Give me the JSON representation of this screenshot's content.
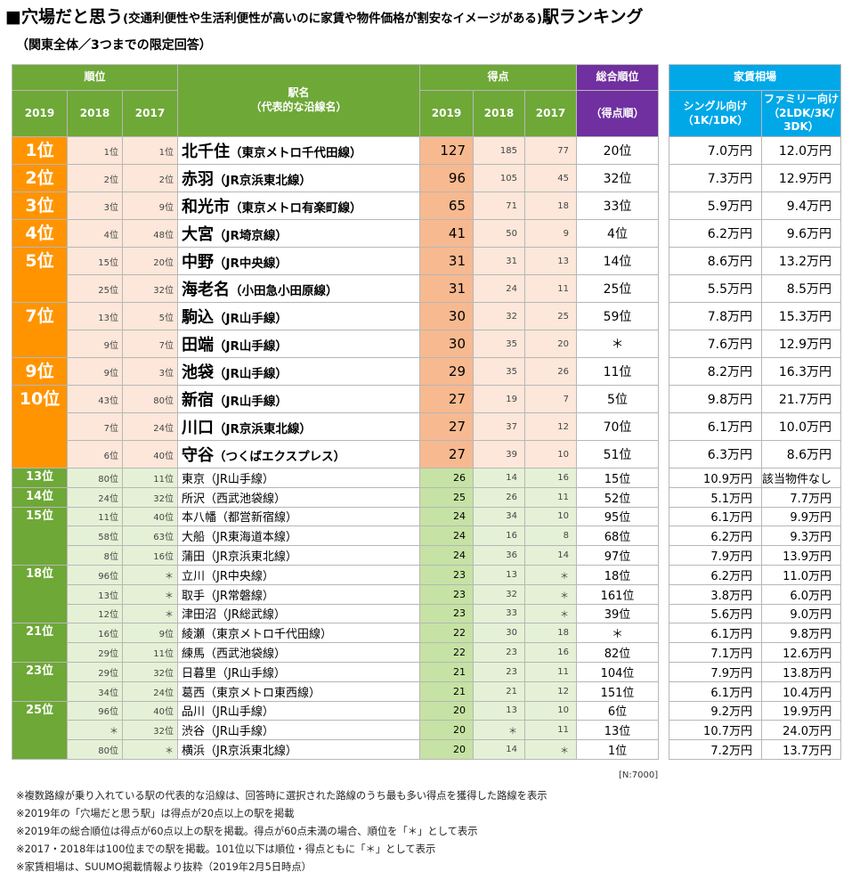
{
  "title": {
    "main_start": "■穴場だと思う",
    "paren": "(交通利便性や生活利便性が高いのに家賃や物件価格が割安なイメージがある)",
    "main_end": "駅ランキング"
  },
  "subtitle": "（関東全体／3つまでの限定回答）",
  "header": {
    "rank": "順位",
    "station_name": "駅名",
    "station_sub": "（代表的な沿線名）",
    "score": "得点",
    "overall": "総合順位",
    "overall_sub": "（得点順）",
    "rent": "家賃相場",
    "single": "シングル向け",
    "single_sub": "（1K/1DK）",
    "family": "ファミリー向け",
    "family_sub": "（2LDK/3K/",
    "family_sub2": "3DK）",
    "y2019": "2019",
    "y2018": "2018",
    "y2017": "2017"
  },
  "rows": [
    {
      "rank": "1位",
      "r2018": "1位",
      "r2017": "1位",
      "station": "北千住",
      "line": "（東京メトロ千代田線）",
      "s2019": "127",
      "s2018": "185",
      "s2017": "77",
      "overall": "20位",
      "single": "7.0万円",
      "family": "12.0万円"
    },
    {
      "rank": "2位",
      "r2018": "2位",
      "r2017": "2位",
      "station": "赤羽",
      "line": "（JR京浜東北線）",
      "s2019": "96",
      "s2018": "105",
      "s2017": "45",
      "overall": "32位",
      "single": "7.3万円",
      "family": "12.9万円"
    },
    {
      "rank": "3位",
      "r2018": "3位",
      "r2017": "9位",
      "station": "和光市",
      "line": "（東京メトロ有楽町線）",
      "s2019": "65",
      "s2018": "71",
      "s2017": "18",
      "overall": "33位",
      "single": "5.9万円",
      "family": "9.4万円"
    },
    {
      "rank": "4位",
      "r2018": "4位",
      "r2017": "48位",
      "station": "大宮",
      "line": "（JR埼京線）",
      "s2019": "41",
      "s2018": "50",
      "s2017": "9",
      "overall": "4位",
      "single": "6.2万円",
      "family": "9.6万円"
    },
    {
      "rank": "5位",
      "r2018": "15位",
      "r2017": "20位",
      "station": "中野",
      "line": "（JR中央線）",
      "s2019": "31",
      "s2018": "31",
      "s2017": "13",
      "overall": "14位",
      "single": "8.6万円",
      "family": "13.2万円"
    },
    {
      "rank": "",
      "r2018": "25位",
      "r2017": "32位",
      "station": "海老名",
      "line": "（小田急小田原線）",
      "s2019": "31",
      "s2018": "24",
      "s2017": "11",
      "overall": "25位",
      "single": "5.5万円",
      "family": "8.5万円"
    },
    {
      "rank": "7位",
      "r2018": "13位",
      "r2017": "5位",
      "station": "駒込",
      "line": "（JR山手線）",
      "s2019": "30",
      "s2018": "32",
      "s2017": "25",
      "overall": "59位",
      "single": "7.8万円",
      "family": "15.3万円"
    },
    {
      "rank": "",
      "r2018": "9位",
      "r2017": "7位",
      "station": "田端",
      "line": "（JR山手線）",
      "s2019": "30",
      "s2018": "35",
      "s2017": "20",
      "overall": "＊",
      "single": "7.6万円",
      "family": "12.9万円"
    },
    {
      "rank": "9位",
      "r2018": "9位",
      "r2017": "3位",
      "station": "池袋",
      "line": "（JR山手線）",
      "s2019": "29",
      "s2018": "35",
      "s2017": "26",
      "overall": "11位",
      "single": "8.2万円",
      "family": "16.3万円"
    },
    {
      "rank": "10位",
      "r2018": "43位",
      "r2017": "80位",
      "station": "新宿",
      "line": "（JR山手線）",
      "s2019": "27",
      "s2018": "19",
      "s2017": "7",
      "overall": "5位",
      "single": "9.8万円",
      "family": "21.7万円"
    },
    {
      "rank": "",
      "r2018": "7位",
      "r2017": "24位",
      "station": "川口",
      "line": "（JR京浜東北線）",
      "s2019": "27",
      "s2018": "37",
      "s2017": "12",
      "overall": "70位",
      "single": "6.1万円",
      "family": "10.0万円"
    },
    {
      "rank": "",
      "r2018": "6位",
      "r2017": "40位",
      "station": "守谷",
      "line": "（つくばエクスプレス）",
      "s2019": "27",
      "s2018": "39",
      "s2017": "10",
      "overall": "51位",
      "single": "6.3万円",
      "family": "8.6万円"
    },
    {
      "rank": "13位",
      "r2018": "80位",
      "r2017": "11位",
      "station": "東京",
      "line": "（JR山手線）",
      "s2019": "26",
      "s2018": "14",
      "s2017": "16",
      "overall": "15位",
      "single": "10.9万円",
      "family": "該当物件なし"
    },
    {
      "rank": "14位",
      "r2018": "24位",
      "r2017": "32位",
      "station": "所沢",
      "line": "（西武池袋線）",
      "s2019": "25",
      "s2018": "26",
      "s2017": "11",
      "overall": "52位",
      "single": "5.1万円",
      "family": "7.7万円"
    },
    {
      "rank": "15位",
      "r2018": "11位",
      "r2017": "40位",
      "station": "本八幡",
      "line": "（都営新宿線）",
      "s2019": "24",
      "s2018": "34",
      "s2017": "10",
      "overall": "95位",
      "single": "6.1万円",
      "family": "9.9万円"
    },
    {
      "rank": "",
      "r2018": "58位",
      "r2017": "63位",
      "station": "大船",
      "line": "（JR東海道本線）",
      "s2019": "24",
      "s2018": "16",
      "s2017": "8",
      "overall": "68位",
      "single": "6.2万円",
      "family": "9.3万円"
    },
    {
      "rank": "",
      "r2018": "8位",
      "r2017": "16位",
      "station": "蒲田",
      "line": "（JR京浜東北線）",
      "s2019": "24",
      "s2018": "36",
      "s2017": "14",
      "overall": "97位",
      "single": "7.9万円",
      "family": "13.9万円"
    },
    {
      "rank": "18位",
      "r2018": "96位",
      "r2017": "＊",
      "station": "立川",
      "line": "（JR中央線）",
      "s2019": "23",
      "s2018": "13",
      "s2017": "＊",
      "overall": "18位",
      "single": "6.2万円",
      "family": "11.0万円"
    },
    {
      "rank": "",
      "r2018": "13位",
      "r2017": "＊",
      "station": "取手",
      "line": "（JR常磐線）",
      "s2019": "23",
      "s2018": "32",
      "s2017": "＊",
      "overall": "161位",
      "single": "3.8万円",
      "family": "6.0万円"
    },
    {
      "rank": "",
      "r2018": "12位",
      "r2017": "＊",
      "station": "津田沼",
      "line": "（JR総武線）",
      "s2019": "23",
      "s2018": "33",
      "s2017": "＊",
      "overall": "39位",
      "single": "5.6万円",
      "family": "9.0万円"
    },
    {
      "rank": "21位",
      "r2018": "16位",
      "r2017": "9位",
      "station": "綾瀬",
      "line": "（東京メトロ千代田線）",
      "s2019": "22",
      "s2018": "30",
      "s2017": "18",
      "overall": "＊",
      "single": "6.1万円",
      "family": "9.8万円"
    },
    {
      "rank": "",
      "r2018": "29位",
      "r2017": "11位",
      "station": "練馬",
      "line": "（西武池袋線）",
      "s2019": "22",
      "s2018": "23",
      "s2017": "16",
      "overall": "82位",
      "single": "7.1万円",
      "family": "12.6万円"
    },
    {
      "rank": "23位",
      "r2018": "29位",
      "r2017": "32位",
      "station": "日暮里",
      "line": "（JR山手線）",
      "s2019": "21",
      "s2018": "23",
      "s2017": "11",
      "overall": "104位",
      "single": "7.9万円",
      "family": "13.8万円"
    },
    {
      "rank": "",
      "r2018": "34位",
      "r2017": "24位",
      "station": "葛西",
      "line": "（東京メトロ東西線）",
      "s2019": "21",
      "s2018": "21",
      "s2017": "12",
      "overall": "151位",
      "single": "6.1万円",
      "family": "10.4万円"
    },
    {
      "rank": "25位",
      "r2018": "96位",
      "r2017": "40位",
      "station": "品川",
      "line": "（JR山手線）",
      "s2019": "20",
      "s2018": "13",
      "s2017": "10",
      "overall": "6位",
      "single": "9.2万円",
      "family": "19.9万円"
    },
    {
      "rank": "",
      "r2018": "＊",
      "r2017": "32位",
      "station": "渋谷",
      "line": "（JR山手線）",
      "s2019": "20",
      "s2018": "＊",
      "s2017": "11",
      "overall": "13位",
      "single": "10.7万円",
      "family": "24.0万円"
    },
    {
      "rank": "",
      "r2018": "80位",
      "r2017": "＊",
      "station": "横浜",
      "line": "（JR京浜東北線）",
      "s2019": "20",
      "s2018": "14",
      "s2017": "＊",
      "overall": "1位",
      "single": "7.2万円",
      "family": "13.7万円"
    }
  ],
  "sample_size": "[N:7000]",
  "notes": [
    "※複数路線が乗り入れている駅の代表的な沿線は、回答時に選択された路線のうち最も多い得点を獲得した路線を表示",
    "※2019年の「穴場だと思う駅」は得点が20点以上の駅を掲載",
    "※2019年の総合順位は得点が60点以上の駅を掲載。得点が60点未満の場合、順位を「＊」として表示",
    "※2017・2018年は100位までの駅を掲載。101位以下は順位・得点ともに「＊」として表示",
    "※家賃相場は、SUUMO掲載情報より抜粋（2019年2月5日時点）"
  ]
}
